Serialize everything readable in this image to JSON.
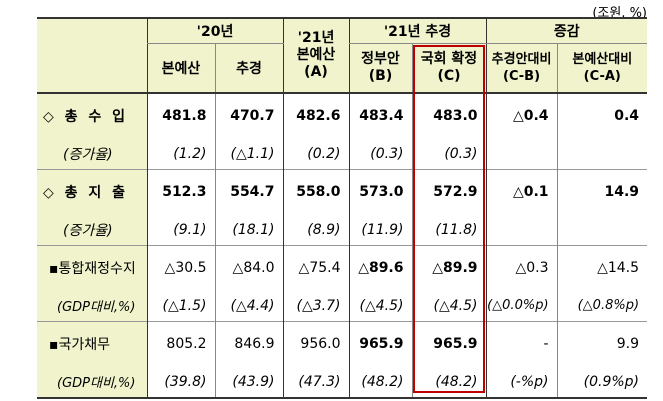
{
  "unit": "(조원, %)",
  "header": {
    "top": {
      "y20": "'20년",
      "y21": "'21년",
      "y21_supp": "'21년 추경",
      "change": "증감"
    },
    "cols": {
      "main_budget_20": "본예산",
      "supp_20": "추경",
      "main_budget_21_line1": "본예산",
      "main_budget_21_line2": "(A)",
      "govt_proposal_line1": "정부안",
      "govt_proposal_line2": "(B)",
      "assembly_line1": "국회 확정",
      "assembly_line2": "(C)",
      "vs_supp_line1": "추경안대비",
      "vs_supp_line2": "(C-B)",
      "vs_main_line1": "본예산대비",
      "vs_main_line2": "(C-A)"
    }
  },
  "rows": [
    {
      "label": "◇ 총 수 입",
      "values": [
        "481.8",
        "470.7",
        "482.6",
        "483.4",
        "483.0",
        "△0.4",
        "0.4"
      ]
    },
    {
      "label": "(증가율)",
      "values": [
        "(1.2)",
        "(△1.1)",
        "(0.2)",
        "(0.3)",
        "(0.3)",
        "",
        ""
      ]
    },
    {
      "label": "◇ 총 지 출",
      "values": [
        "512.3",
        "554.7",
        "558.0",
        "573.0",
        "572.9",
        "△0.1",
        "14.9"
      ]
    },
    {
      "label": "(증가율)",
      "values": [
        "(9.1)",
        "(18.1)",
        "(8.9)",
        "(11.9)",
        "(11.8)",
        "",
        ""
      ]
    },
    {
      "label": "▪통합재정수지",
      "values": [
        "△30.5",
        "△84.0",
        "△75.4",
        "△89.6",
        "△89.9",
        "△0.3",
        "△14.5"
      ]
    },
    {
      "label": "(GDP대비,%)",
      "values": [
        "(△1.5)",
        "(△4.4)",
        "(△3.7)",
        "(△4.5)",
        "(△4.5)",
        "(△0.0%p)",
        "(△0.8%p)"
      ]
    },
    {
      "label": "▪국가채무",
      "values": [
        "805.2",
        "846.9",
        "956.0",
        "965.9",
        "965.9",
        "-",
        "9.9"
      ]
    },
    {
      "label": "(GDP대비,%)",
      "values": [
        "(39.8)",
        "(43.9)",
        "(47.3)",
        "(48.2)",
        "(48.2)",
        "(-%p)",
        "(0.9%p)"
      ]
    }
  ],
  "colors": {
    "header_bg": "#f0f3cc",
    "highlight_border": "#c00000"
  }
}
